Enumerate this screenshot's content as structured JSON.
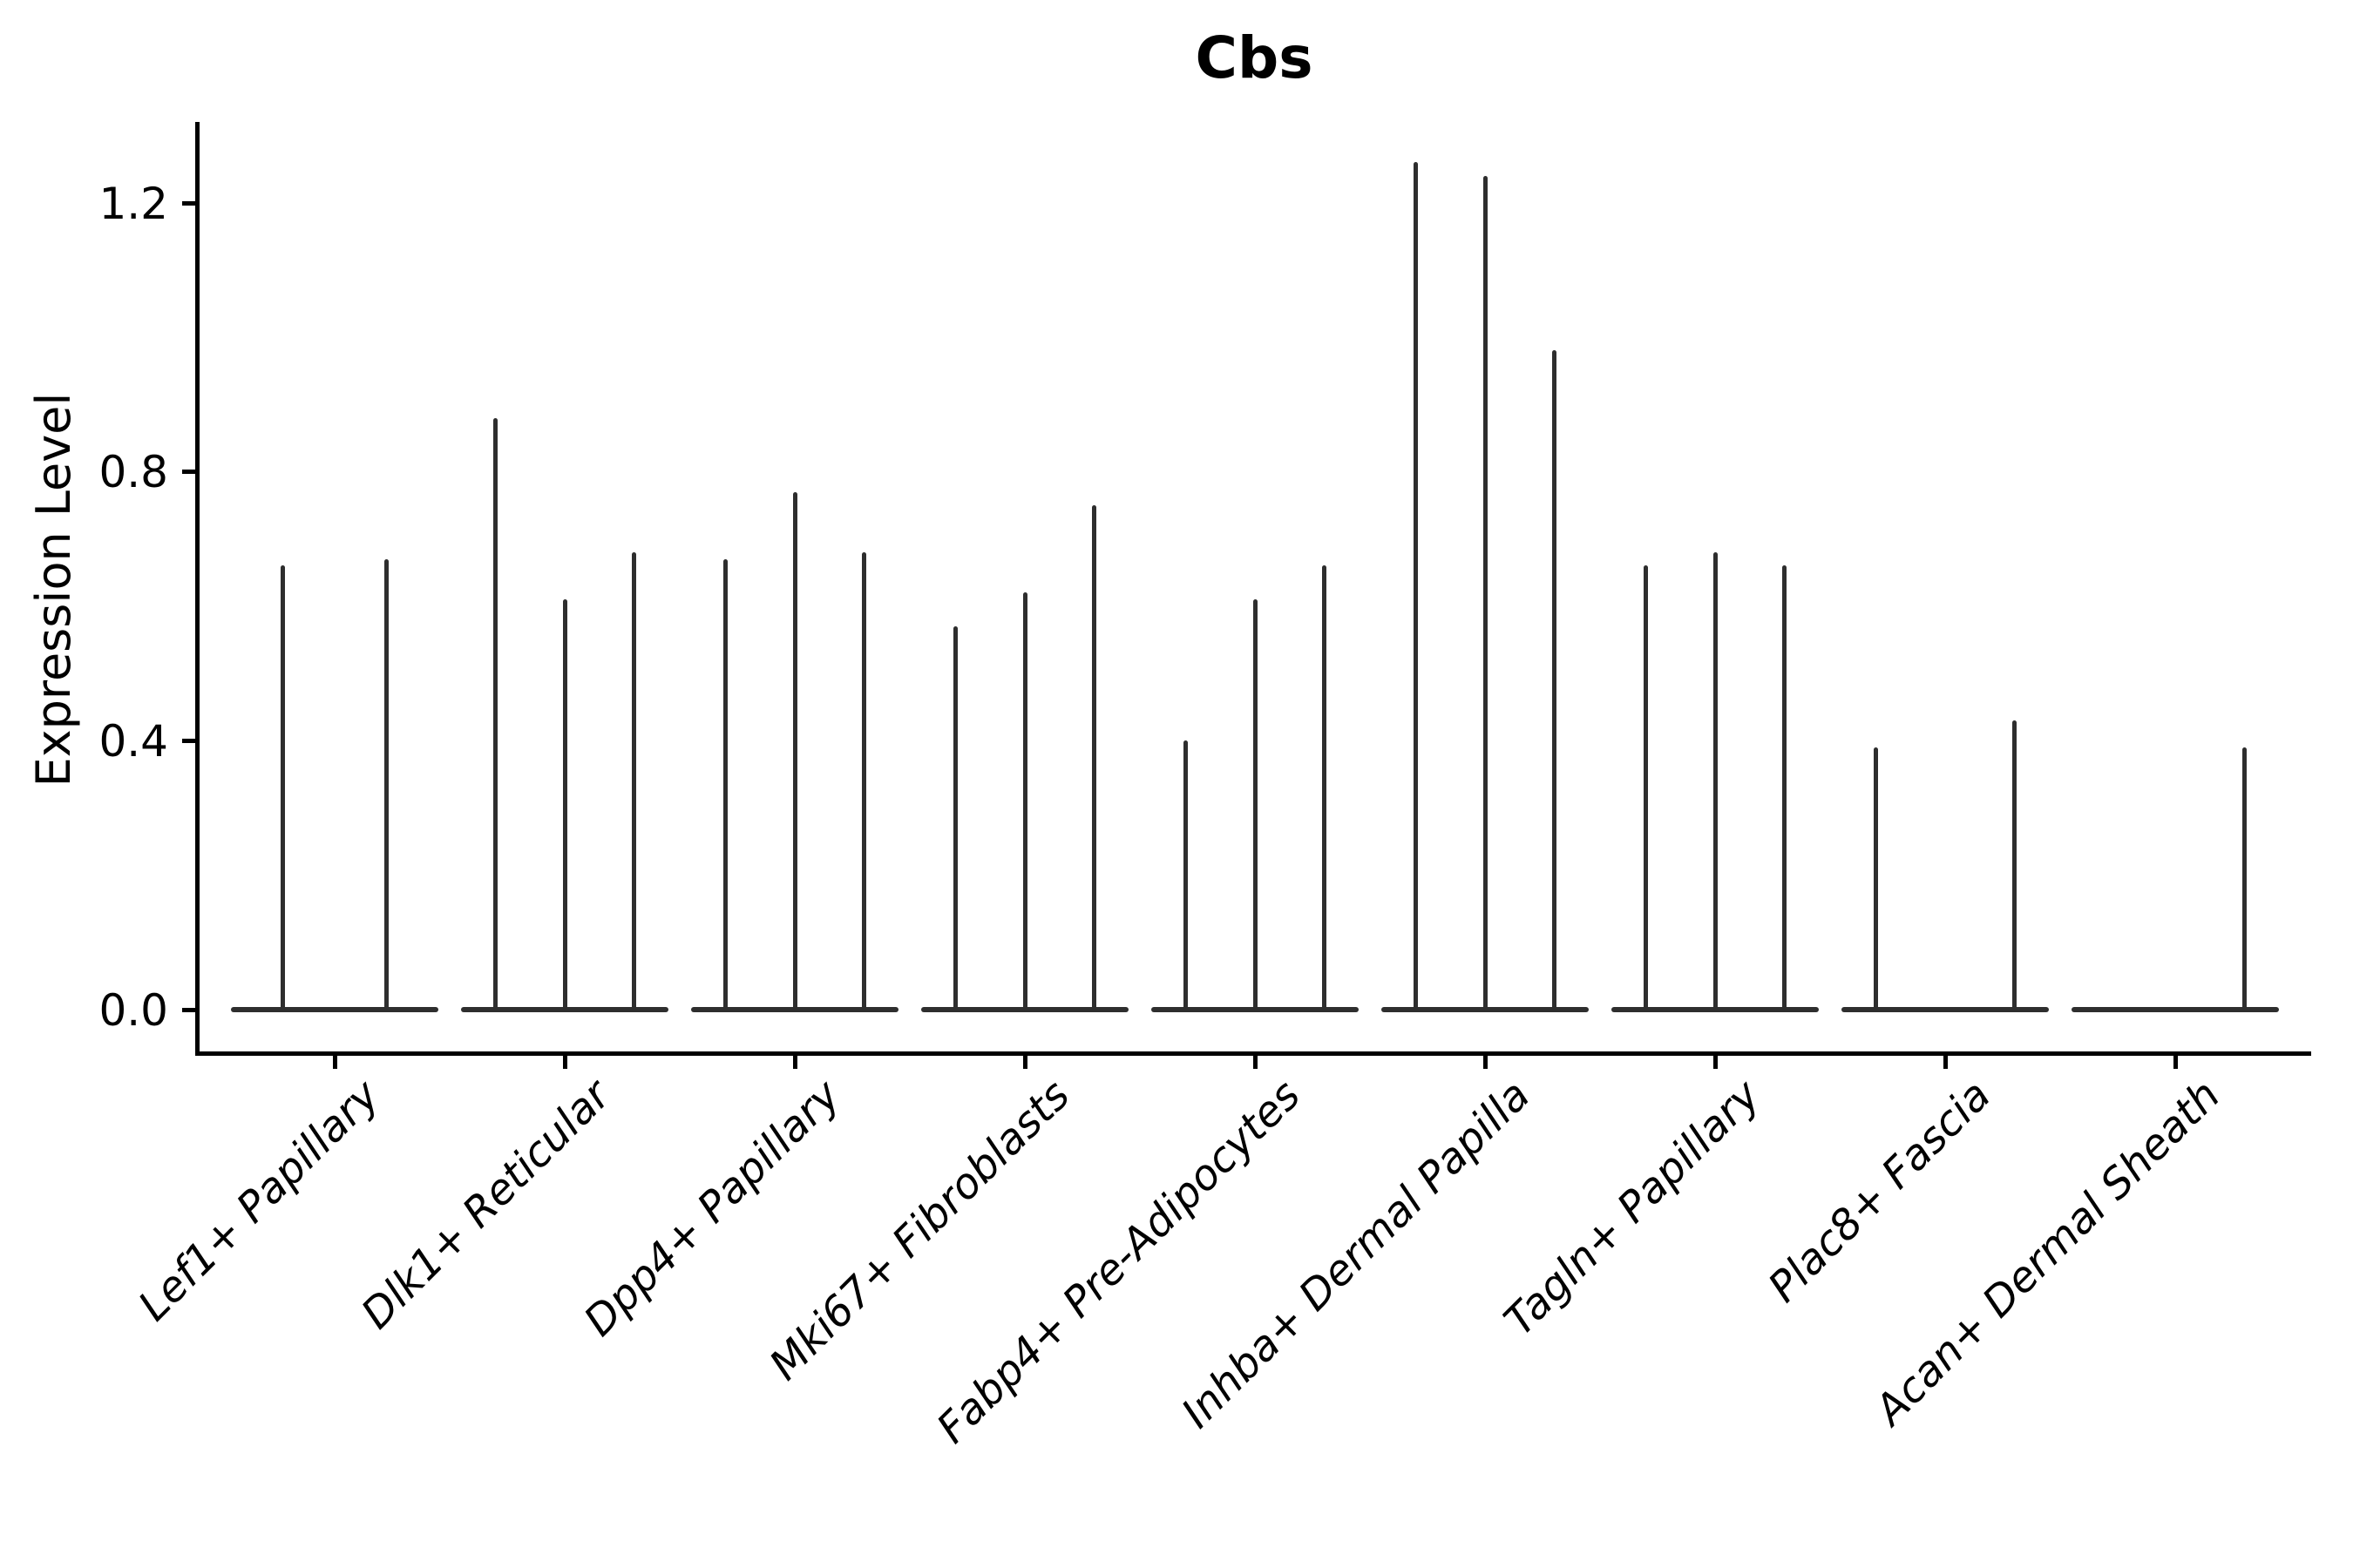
{
  "chart_data": {
    "type": "violin",
    "title": "Cbs",
    "ylabel": "Expression Level",
    "xlabel": "",
    "yticks": [
      0.0,
      0.4,
      0.8,
      1.2
    ],
    "ytick_labels": [
      "0.0",
      "0.4",
      "0.8",
      "1.2"
    ],
    "ylim": [
      -0.065,
      1.32
    ],
    "grid": false,
    "legend": false,
    "orientation": "vertical",
    "groups": [
      {
        "label": "Lef1+ Papillary",
        "spikes": [
          0.66,
          0.67
        ]
      },
      {
        "label": "Dlk1+ Reticular",
        "spikes": [
          0.88,
          0.61,
          0.68
        ]
      },
      {
        "label": "Dpp4+ Papillary",
        "spikes": [
          0.67,
          0.77,
          0.68
        ]
      },
      {
        "label": "Mki67+ Fibroblasts",
        "spikes": [
          0.57,
          0.62,
          0.75
        ]
      },
      {
        "label": "Fabp4+ Pre-Adipocytes",
        "spikes": [
          0.4,
          0.61,
          0.66
        ]
      },
      {
        "label": "Inhba+ Dermal Papilla",
        "spikes": [
          1.26,
          1.24,
          0.98
        ]
      },
      {
        "label": "Tagln+ Papillary",
        "spikes": [
          0.66,
          0.68,
          0.66
        ]
      },
      {
        "label": "Plac8+ Fascia",
        "spikes": [
          0.39,
          0,
          0.43
        ]
      },
      {
        "label": "Acan+ Dermal Sheath",
        "spikes": [
          0,
          0,
          0.39
        ]
      }
    ],
    "colors": {
      "violin": "#2e2e2e",
      "axis": "#000000",
      "text": "#000000",
      "background": "#ffffff"
    }
  }
}
